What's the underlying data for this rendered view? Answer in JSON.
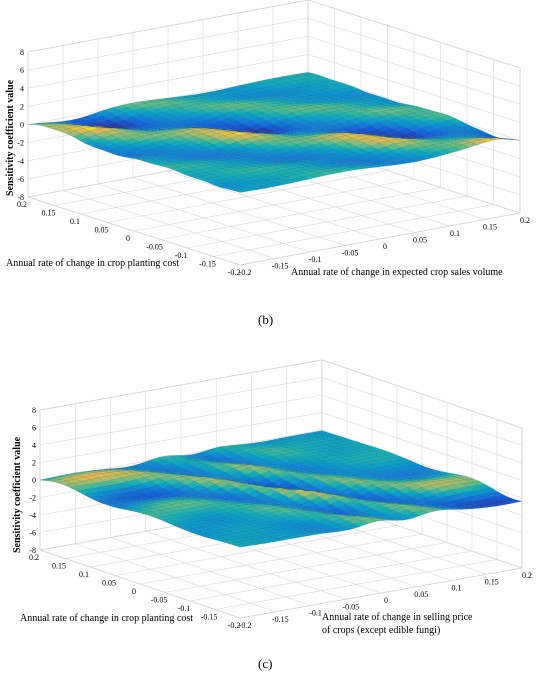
{
  "chart_data": [
    {
      "type": "surface",
      "panel_label": "(b)",
      "xlabel": "Annual rate of change in crop planting cost",
      "ylabel_lines": [
        "Annual rate of change in expected crop sales volume"
      ],
      "zlabel": "Sensitivity coefficient value",
      "x_ticks": [
        "0.2",
        "0.15",
        "0.1",
        "0.05",
        "0",
        "-0.05",
        "-0.1",
        "-0.15",
        "-0.2"
      ],
      "y_ticks": [
        "-0.2",
        "-0.15",
        "-0.1",
        "-0.05",
        "0",
        "0.05",
        "0.1",
        "0.15",
        "0.2"
      ],
      "z_ticks": [
        "8",
        "6",
        "4",
        "2",
        "0",
        "-2",
        "-4",
        "-6",
        "-8"
      ],
      "xlim": [
        -0.2,
        0.2
      ],
      "ylim": [
        -0.2,
        0.2
      ],
      "zlim": [
        -8,
        8
      ],
      "grid": true,
      "colormap": "parula",
      "surface_shape": "diagonal-ridges",
      "grid_resolution": 33
    },
    {
      "type": "surface",
      "panel_label": "(c)",
      "xlabel": "Annual rate of change in crop planting cost",
      "ylabel_lines": [
        "Annual rate of change in selling price",
        "of crops (except edible fungi)"
      ],
      "zlabel": "Sensitivity coefficient value",
      "x_ticks": [
        "0.2",
        "0.15",
        "0.1",
        "0.05",
        "0",
        "-0.05",
        "-0.1",
        "-0.15",
        "-0.2"
      ],
      "y_ticks": [
        "-0.2",
        "-0.15",
        "-0.1",
        "-0.05",
        "0",
        "0.05",
        "0.1",
        "0.15",
        "0.2"
      ],
      "z_ticks": [
        "8",
        "6",
        "4",
        "2",
        "0",
        "-2",
        "-4",
        "-6",
        "-8"
      ],
      "xlim": [
        -0.2,
        0.2
      ],
      "ylim": [
        -0.2,
        0.2
      ],
      "zlim": [
        -8,
        8
      ],
      "grid": true,
      "colormap": "parula",
      "surface_shape": "wavy-ridges",
      "grid_resolution": 33
    }
  ]
}
